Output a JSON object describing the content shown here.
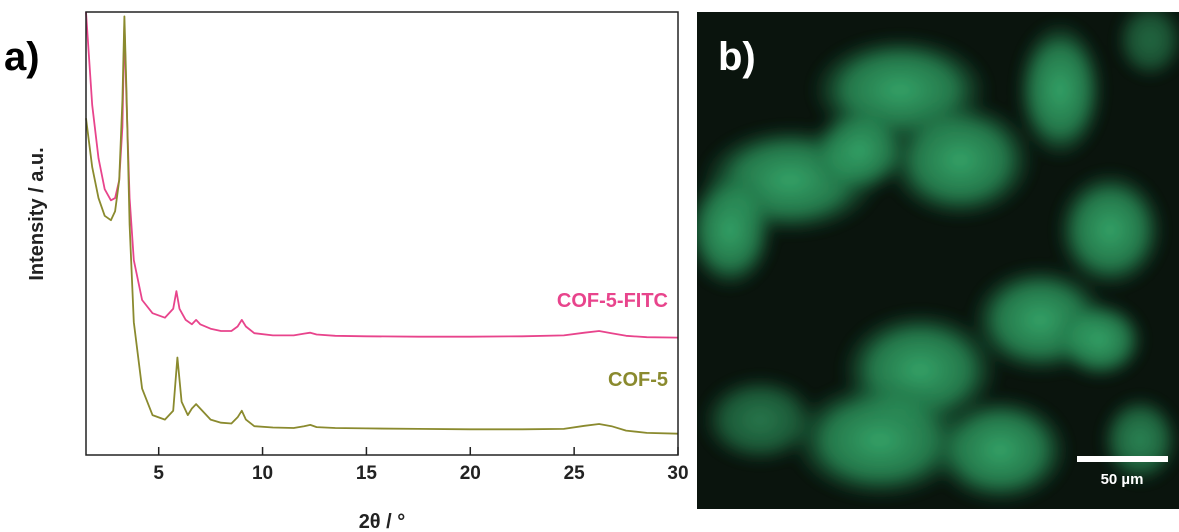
{
  "panel_a": {
    "label": "a)"
  },
  "panel_b": {
    "label": "b)",
    "scale_bar_label": "50 µm",
    "image_tint": "#2ea866"
  },
  "colors": {
    "cof5_fitc": "#e8448c",
    "cof5": "#8a8a2e",
    "axis": "#222222"
  },
  "chart_data": {
    "type": "line",
    "xlabel": "2θ / °",
    "ylabel": "Intensity / a.u.",
    "xlim": [
      1.5,
      30
    ],
    "ylim": [
      0,
      100
    ],
    "xticks": [
      5,
      10,
      15,
      20,
      25,
      30
    ],
    "y_ticks_shown": false,
    "grid": false,
    "series": [
      {
        "name": "COF-5-FITC",
        "color": "#e8448c",
        "x": [
          1.5,
          1.8,
          2.1,
          2.4,
          2.7,
          2.9,
          3.1,
          3.25,
          3.35,
          3.45,
          3.6,
          3.8,
          4.2,
          4.7,
          5.3,
          5.7,
          5.85,
          6.0,
          6.3,
          6.6,
          6.8,
          7.0,
          7.5,
          8.0,
          8.5,
          8.8,
          9.0,
          9.2,
          9.6,
          10.5,
          11.5,
          12.0,
          12.3,
          12.6,
          13.5,
          15,
          17.5,
          20,
          22.5,
          24.5,
          25.5,
          26.2,
          26.8,
          27.5,
          28.5,
          30
        ],
        "y": [
          100,
          79,
          67,
          60,
          57.5,
          58,
          62,
          74,
          97,
          80,
          58,
          44,
          35,
          32,
          31,
          33,
          37,
          33,
          30.5,
          29.5,
          30.5,
          29.5,
          28.5,
          28,
          28,
          29,
          30.5,
          29,
          27.5,
          27,
          27,
          27.4,
          27.6,
          27.2,
          26.9,
          26.8,
          26.7,
          26.7,
          26.8,
          27.0,
          27.6,
          28.0,
          27.5,
          26.9,
          26.6,
          26.5
        ]
      },
      {
        "name": "COF-5",
        "color": "#8a8a2e",
        "x": [
          1.5,
          1.8,
          2.1,
          2.4,
          2.7,
          2.9,
          3.1,
          3.25,
          3.35,
          3.45,
          3.6,
          3.8,
          4.2,
          4.7,
          5.3,
          5.7,
          5.9,
          6.1,
          6.4,
          6.6,
          6.8,
          7.0,
          7.5,
          8.0,
          8.5,
          8.8,
          9.0,
          9.2,
          9.6,
          10.5,
          11.5,
          12.0,
          12.3,
          12.6,
          13.5,
          15,
          17.5,
          20,
          22.5,
          24.5,
          25.5,
          26.2,
          26.8,
          27.5,
          28.5,
          30
        ],
        "y": [
          76,
          65,
          58,
          54,
          53,
          55,
          62,
          80,
          99,
          82,
          52,
          30,
          15,
          9,
          8,
          10,
          22,
          12,
          9,
          10.5,
          11.5,
          10.5,
          8,
          7.3,
          7.1,
          8.5,
          10,
          8,
          6.5,
          6.2,
          6.1,
          6.5,
          6.8,
          6.3,
          6.1,
          6.0,
          5.9,
          5.8,
          5.8,
          5.9,
          6.6,
          7.0,
          6.5,
          5.5,
          5.0,
          4.8
        ]
      }
    ]
  }
}
